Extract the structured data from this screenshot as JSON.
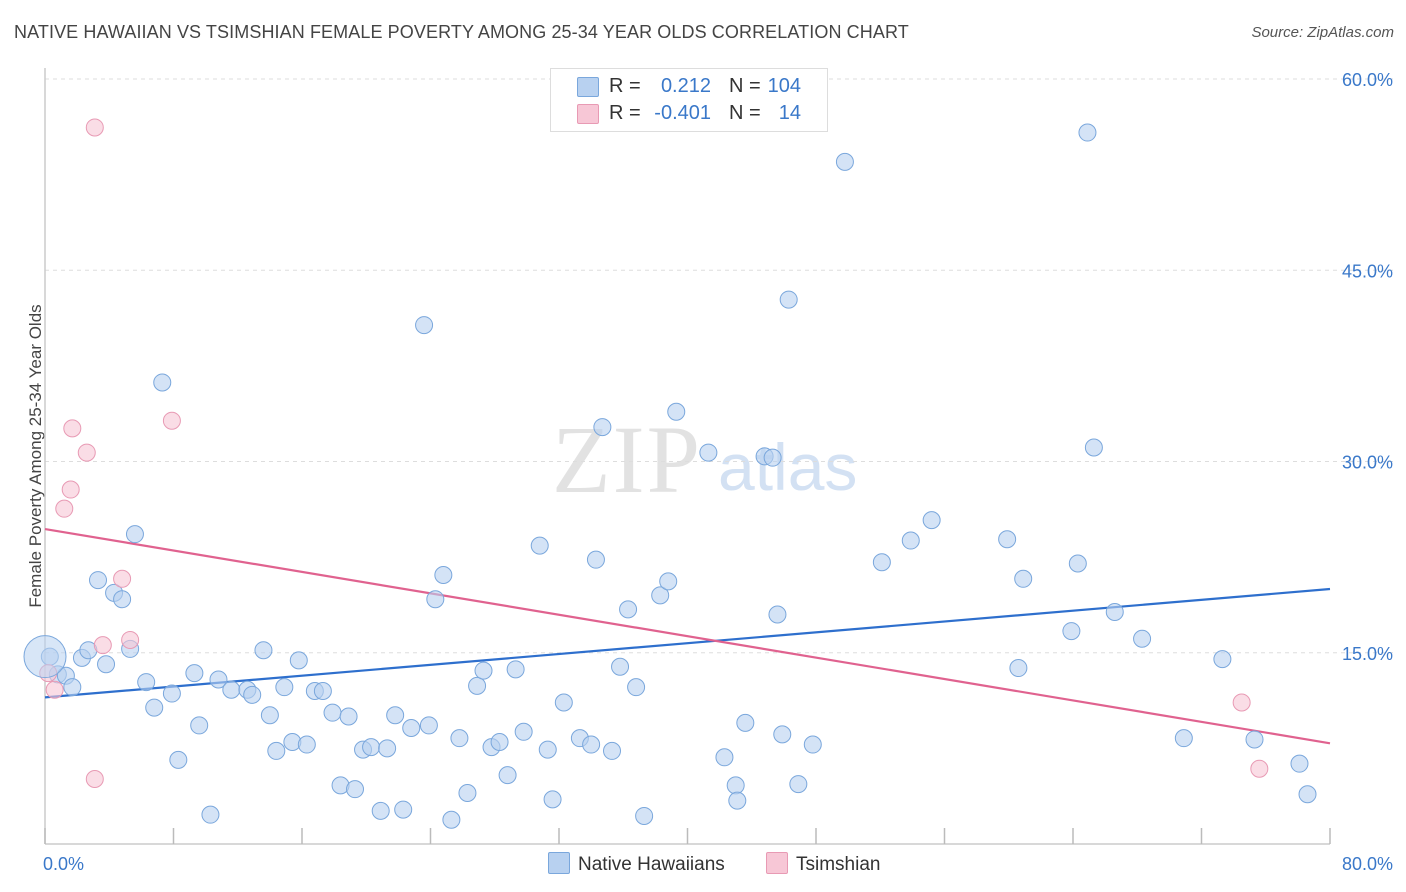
{
  "title": "NATIVE HAWAIIAN VS TSIMSHIAN FEMALE POVERTY AMONG 25-34 YEAR OLDS CORRELATION CHART",
  "source": "Source: ZipAtlas.com",
  "watermark": {
    "zip": "ZIP",
    "atlas": "atlas"
  },
  "colors": {
    "blue_fill": "#b8d1f0",
    "blue_stroke": "#7aa7dc",
    "blue_line": "#2e6fcd",
    "pink_fill": "#f7c7d6",
    "pink_stroke": "#e89ab4",
    "pink_line": "#e0628f",
    "axis_text": "#3a78c9",
    "grid": "#dddddd"
  },
  "legend": {
    "rows": [
      {
        "r_label": "R =",
        "r_value": "0.212",
        "n_label": "N =",
        "n_value": "104",
        "color": "blue"
      },
      {
        "r_label": "R =",
        "r_value": "-0.401",
        "n_label": "N =",
        "n_value": "14",
        "color": "pink"
      }
    ]
  },
  "chart_data": {
    "type": "scatter",
    "title": "NATIVE HAWAIIAN VS TSIMSHIAN FEMALE POVERTY AMONG 25-34 YEAR OLDS CORRELATION CHART",
    "xlabel": "",
    "ylabel": "Female Poverty Among 25-34 Year Olds",
    "xlim": [
      0,
      80
    ],
    "ylim": [
      0,
      60
    ],
    "x_tick_labels": [
      "0.0%",
      "80.0%"
    ],
    "y_ticks": [
      15,
      30,
      45,
      60
    ],
    "y_tick_labels": [
      "15.0%",
      "30.0%",
      "45.0%",
      "60.0%"
    ],
    "grid": true,
    "legend_position": "top-center",
    "series": [
      {
        "name": "Native Hawaiians",
        "color": "blue",
        "trend": {
          "x": [
            0,
            80
          ],
          "y": [
            11.5,
            20.0
          ]
        },
        "points": [
          [
            0.3,
            14.7
          ],
          [
            0.8,
            13.3
          ],
          [
            1.3,
            13.2
          ],
          [
            1.7,
            12.3
          ],
          [
            2.3,
            14.6
          ],
          [
            2.7,
            15.2
          ],
          [
            3.3,
            20.7
          ],
          [
            3.8,
            14.1
          ],
          [
            4.3,
            19.7
          ],
          [
            4.8,
            19.2
          ],
          [
            5.3,
            15.3
          ],
          [
            5.6,
            24.3
          ],
          [
            6.3,
            12.7
          ],
          [
            6.8,
            10.7
          ],
          [
            7.3,
            36.2
          ],
          [
            7.9,
            11.8
          ],
          [
            8.3,
            6.6
          ],
          [
            9.3,
            13.4
          ],
          [
            9.6,
            9.3
          ],
          [
            10.3,
            2.3
          ],
          [
            10.8,
            12.9
          ],
          [
            11.6,
            12.1
          ],
          [
            12.6,
            12.1
          ],
          [
            12.9,
            11.7
          ],
          [
            13.6,
            15.2
          ],
          [
            14.0,
            10.1
          ],
          [
            14.4,
            7.3
          ],
          [
            14.9,
            12.3
          ],
          [
            15.4,
            8.0
          ],
          [
            15.8,
            14.4
          ],
          [
            16.3,
            7.8
          ],
          [
            16.8,
            12.0
          ],
          [
            17.3,
            12.0
          ],
          [
            17.9,
            10.3
          ],
          [
            18.4,
            4.6
          ],
          [
            18.9,
            10.0
          ],
          [
            19.3,
            4.3
          ],
          [
            19.8,
            7.4
          ],
          [
            20.3,
            7.6
          ],
          [
            20.9,
            2.6
          ],
          [
            21.3,
            7.5
          ],
          [
            21.8,
            10.1
          ],
          [
            22.3,
            2.7
          ],
          [
            22.8,
            9.1
          ],
          [
            23.6,
            40.7
          ],
          [
            23.9,
            9.3
          ],
          [
            24.3,
            19.2
          ],
          [
            24.8,
            21.1
          ],
          [
            25.3,
            1.9
          ],
          [
            25.8,
            8.3
          ],
          [
            26.3,
            4.0
          ],
          [
            26.9,
            12.4
          ],
          [
            27.3,
            13.6
          ],
          [
            27.8,
            7.6
          ],
          [
            28.3,
            8.0
          ],
          [
            28.8,
            5.4
          ],
          [
            29.3,
            13.7
          ],
          [
            29.8,
            8.8
          ],
          [
            30.8,
            23.4
          ],
          [
            31.3,
            7.4
          ],
          [
            31.6,
            3.5
          ],
          [
            32.3,
            11.1
          ],
          [
            33.3,
            8.3
          ],
          [
            34.3,
            22.3
          ],
          [
            34.7,
            32.7
          ],
          [
            34.0,
            7.8
          ],
          [
            35.3,
            7.3
          ],
          [
            35.8,
            13.9
          ],
          [
            36.3,
            18.4
          ],
          [
            36.8,
            12.3
          ],
          [
            37.3,
            2.2
          ],
          [
            38.3,
            19.5
          ],
          [
            38.8,
            20.6
          ],
          [
            39.3,
            33.9
          ],
          [
            41.3,
            30.7
          ],
          [
            42.3,
            6.8
          ],
          [
            43.0,
            4.6
          ],
          [
            43.1,
            3.4
          ],
          [
            43.6,
            9.5
          ],
          [
            44.8,
            30.4
          ],
          [
            45.3,
            30.3
          ],
          [
            45.6,
            18.0
          ],
          [
            45.9,
            8.6
          ],
          [
            46.3,
            42.7
          ],
          [
            46.9,
            4.7
          ],
          [
            47.8,
            7.8
          ],
          [
            49.8,
            53.5
          ],
          [
            52.1,
            22.1
          ],
          [
            53.9,
            23.8
          ],
          [
            55.2,
            25.4
          ],
          [
            59.9,
            23.9
          ],
          [
            60.6,
            13.8
          ],
          [
            60.9,
            20.8
          ],
          [
            63.9,
            16.7
          ],
          [
            64.3,
            22.0
          ],
          [
            64.9,
            55.8
          ],
          [
            65.3,
            31.1
          ],
          [
            66.6,
            18.2
          ],
          [
            68.3,
            16.1
          ],
          [
            70.9,
            8.3
          ],
          [
            73.3,
            14.5
          ],
          [
            75.3,
            8.2
          ],
          [
            78.1,
            6.3
          ],
          [
            78.6,
            3.9
          ]
        ]
      },
      {
        "name": "Tsimshian",
        "color": "pink",
        "trend": {
          "x": [
            0,
            80
          ],
          "y": [
            24.7,
            7.9
          ]
        },
        "points": [
          [
            0.2,
            13.4
          ],
          [
            0.6,
            12.1
          ],
          [
            1.2,
            26.3
          ],
          [
            1.6,
            27.8
          ],
          [
            1.7,
            32.6
          ],
          [
            2.6,
            30.7
          ],
          [
            3.1,
            5.1
          ],
          [
            3.1,
            56.2
          ],
          [
            3.6,
            15.6
          ],
          [
            4.8,
            20.8
          ],
          [
            5.3,
            16.0
          ],
          [
            7.9,
            33.2
          ],
          [
            74.5,
            11.1
          ],
          [
            75.6,
            5.9
          ]
        ]
      }
    ]
  },
  "bottom_legend": [
    {
      "label": "Native Hawaiians",
      "color": "blue"
    },
    {
      "label": "Tsimshian",
      "color": "pink"
    }
  ]
}
